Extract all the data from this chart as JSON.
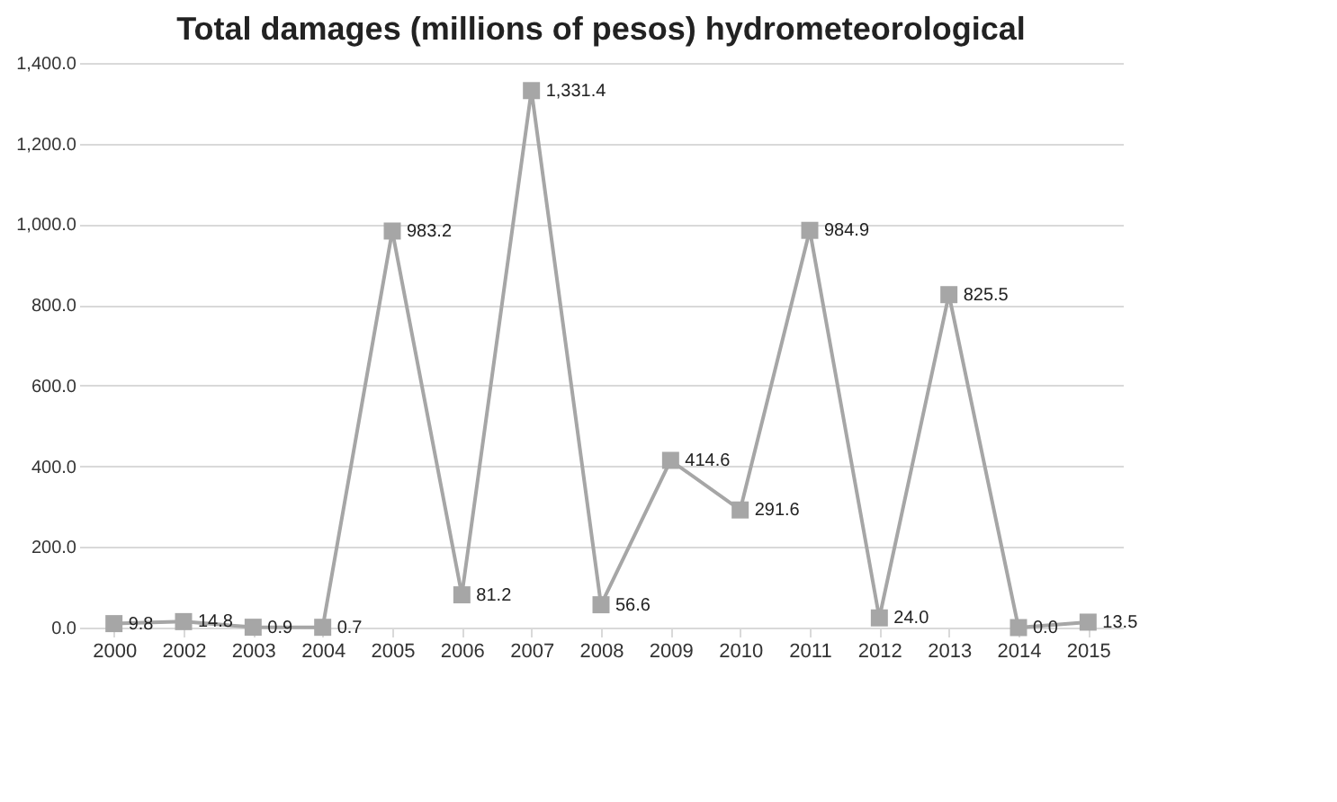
{
  "chart_data": {
    "type": "line",
    "title": "Total damages (millions of pesos) hydrometeorological",
    "categories": [
      "2000",
      "2002",
      "2003",
      "2004",
      "2005",
      "2006",
      "2007",
      "2008",
      "2009",
      "2010",
      "2011",
      "2012",
      "2013",
      "2014",
      "2015"
    ],
    "series": [
      {
        "color": "#a6a6a6",
        "values": [
          9.8,
          14.8,
          0.9,
          0.7,
          983.2,
          81.2,
          1331.4,
          56.6,
          414.6,
          291.6,
          984.9,
          24.0,
          825.5,
          0.0,
          13.5
        ]
      }
    ],
    "value_labels": [
      "9.8",
      "14.8",
      "0.9",
      "0.7",
      "983.2",
      "81.2",
      "1,331.4",
      "56.6",
      "414.6",
      "291.6",
      "984.9",
      "24.0",
      "825.5",
      "0.0",
      "13.5"
    ],
    "ylim": [
      0,
      1400
    ],
    "yticks": [
      {
        "value": 0,
        "label": "0.0"
      },
      {
        "value": 200,
        "label": "200.0"
      },
      {
        "value": 400,
        "label": "400.0"
      },
      {
        "value": 600,
        "label": "600.0"
      },
      {
        "value": 800,
        "label": "800.0"
      },
      {
        "value": 1000,
        "label": "1,000.0"
      },
      {
        "value": 1200,
        "label": "1,200.0"
      },
      {
        "value": 1400,
        "label": "1,400.0"
      }
    ],
    "grid": "y",
    "marker": "square",
    "line_style": "solid"
  }
}
